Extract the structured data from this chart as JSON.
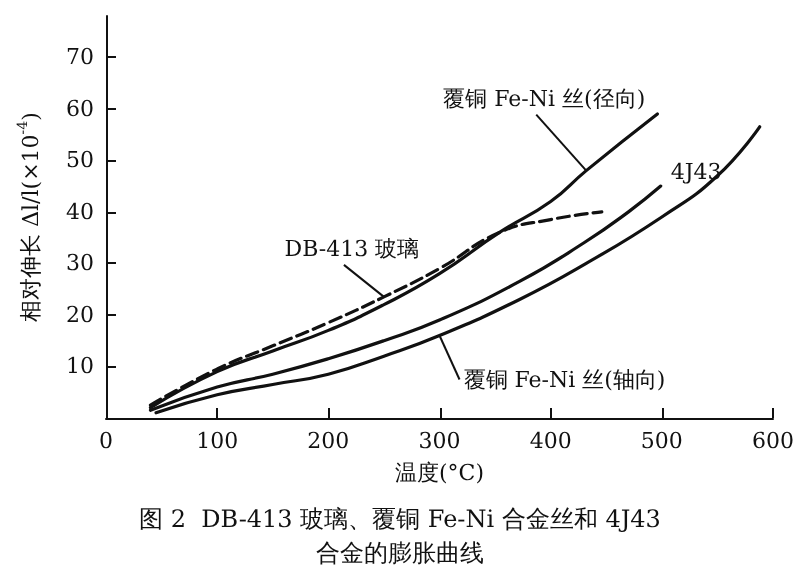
{
  "chart_data": {
    "type": "line",
    "title": "图 2  DB-413 玻璃、覆铜 Fe-Ni 合金丝和 4J43\n合金的膨胀曲线",
    "xlabel": "温度(°C)",
    "ylabel": "相对伸长 Δl/l(×10$^{-4}$)",
    "xlim": [
      0,
      600
    ],
    "xticks": [
      0,
      100,
      200,
      300,
      400,
      500,
      600
    ],
    "ylim": [
      0,
      78
    ],
    "yticks": [
      10,
      20,
      30,
      40,
      50,
      60,
      70
    ],
    "grid": false,
    "legend": false,
    "marker": "none",
    "series": [
      {
        "name": "覆铜 Fe-Ni 丝(径向)",
        "color": "#111111",
        "line_style": "solid",
        "x": [
          40,
          100,
          150,
          200,
          250,
          300,
          354,
          400,
          432,
          496
        ],
        "values": [
          2,
          9,
          13,
          17,
          22,
          28,
          36,
          42,
          48,
          59
        ]
      },
      {
        "name": "DB-413 玻璃",
        "color": "#111111",
        "line_style": "dashed",
        "x": [
          40,
          100,
          150,
          200,
          250,
          300,
          354,
          400,
          446
        ],
        "values": [
          2.5,
          9.5,
          14,
          18.5,
          23.5,
          29,
          36,
          38.5,
          40
        ]
      },
      {
        "name": "4J43",
        "color": "#111111",
        "line_style": "solid",
        "x": [
          40,
          100,
          150,
          200,
          250,
          300,
          372,
          430,
          470,
          499
        ],
        "values": [
          1.5,
          6,
          8.5,
          11.5,
          15,
          19,
          26.5,
          34,
          40,
          45
        ]
      },
      {
        "name": "覆铜 Fe-Ni 丝(轴向)",
        "color": "#111111",
        "line_style": "solid",
        "x": [
          45,
          100,
          150,
          200,
          250,
          300,
          372,
          432,
          500,
          550,
          588
        ],
        "values": [
          1,
          4.5,
          6.5,
          8.5,
          12,
          16,
          23,
          30,
          39,
          47,
          56.5
        ]
      }
    ]
  }
}
